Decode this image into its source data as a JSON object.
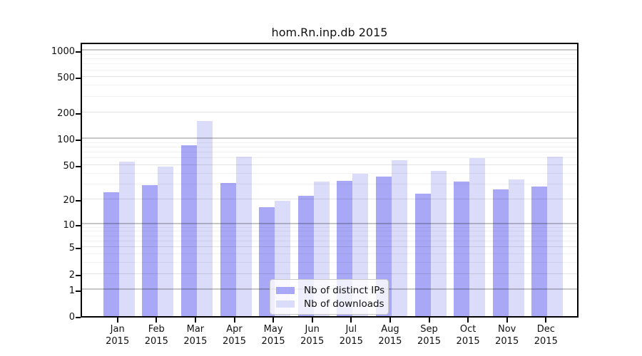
{
  "title": "hom.Rn.inp.db 2015",
  "legend": {
    "items": [
      {
        "label": "Nb of distinct IPs",
        "color": "#a8a8f6"
      },
      {
        "label": "Nb of downloads",
        "color": "#dbdbfa"
      }
    ]
  },
  "chart_data": {
    "type": "bar",
    "title": "hom.Rn.inp.db 2015",
    "categories": [
      "Jan 2015",
      "Feb 2015",
      "Mar 2015",
      "Apr 2015",
      "May 2015",
      "Jun 2015",
      "Jul 2015",
      "Aug 2015",
      "Sep 2015",
      "Oct 2015",
      "Nov 2015",
      "Dec 2015"
    ],
    "series": [
      {
        "name": "Nb of distinct IPs",
        "color": "#a8a8f6",
        "values": [
          24,
          29,
          85,
          31,
          16,
          22,
          33,
          37,
          23,
          32,
          26,
          28
        ]
      },
      {
        "name": "Nb of downloads",
        "color": "#dbdbfa",
        "values": [
          55,
          48,
          160,
          62,
          19,
          32,
          40,
          57,
          43,
          60,
          34,
          63
        ]
      }
    ],
    "y_axis": {
      "scale": "log10(value+1)",
      "ticks": [
        0,
        1,
        2,
        5,
        10,
        20,
        50,
        100,
        200,
        500,
        1000
      ],
      "range": [
        0,
        1273
      ],
      "decade_lines": [
        1,
        10,
        100,
        1000
      ],
      "medium_lines": [
        2,
        5,
        20,
        50,
        200,
        500
      ],
      "minor_lines": [
        3,
        4,
        6,
        7,
        8,
        9,
        30,
        40,
        60,
        70,
        80,
        90,
        300,
        400,
        600,
        700,
        800,
        900
      ]
    },
    "grid": "on",
    "legend_position": "inside-bottom-center"
  }
}
